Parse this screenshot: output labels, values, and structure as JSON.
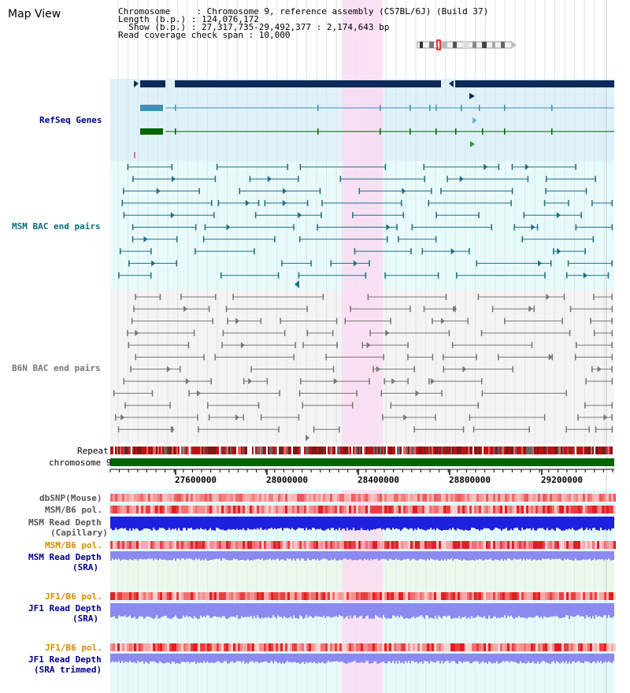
{
  "title": "Map View",
  "info": {
    "line1": "Chromosome     : Chromosome 9, reference assembly (C57BL/6J) (Build 37)",
    "line2": "Length (b.p.) : 124,076,172",
    "line3": "  Show (b.p.) : 27,317,735-29,492,377 : 2,174,643 bp",
    "line4": "Read coverage check span : 10,000"
  },
  "tracks": {
    "refseq": "RefSeq Genes",
    "msm_bac": "MSM BAC end pairs",
    "b6n_bac": "B6N BAC end pairs",
    "repeat": "Repeat",
    "chromosome": "chromosome 9",
    "dbsnp": "dbSNP(Mouse)",
    "msm_b6_pol": "MSM/B6 pol.",
    "msm_depth_cap_1": "MSM Read Depth",
    "msm_depth_cap_2": "(Capillary)",
    "msm_b6_pol2": "MSM/B6 pol.",
    "msm_depth_sra_1": "MSM Read Depth",
    "msm_depth_sra_2": "(SRA)",
    "jf1_pol": "JF1/B6 pol.",
    "jf1_depth_1": "JF1 Read Depth",
    "jf1_depth_2": "(SRA)",
    "jf1_pol2": "JF1/B6 pol.",
    "jf1_trim_1": "JF1 Read Depth",
    "jf1_trim_2": "(SRA trimmed)"
  },
  "axis_ticks": [
    "27600000",
    "28000000",
    "28400000",
    "28800000",
    "29200000"
  ],
  "colors": {
    "refseq_bg": "#dff2fb",
    "msm_bg": "#e8fbfb",
    "b6n_bg": "#f4f4f4",
    "highlight": "#fadcf2",
    "dark_gene": "#0c2a57",
    "msm_line": "#1f6f86",
    "b6n_line": "#777777",
    "chrom_green": "#006400",
    "depth_blue": "#1f1fe0",
    "depth_light": "#8a8af0",
    "label_blue": "#00008b",
    "label_orange": "#d58a00",
    "label_teal": "#0a6f80"
  }
}
